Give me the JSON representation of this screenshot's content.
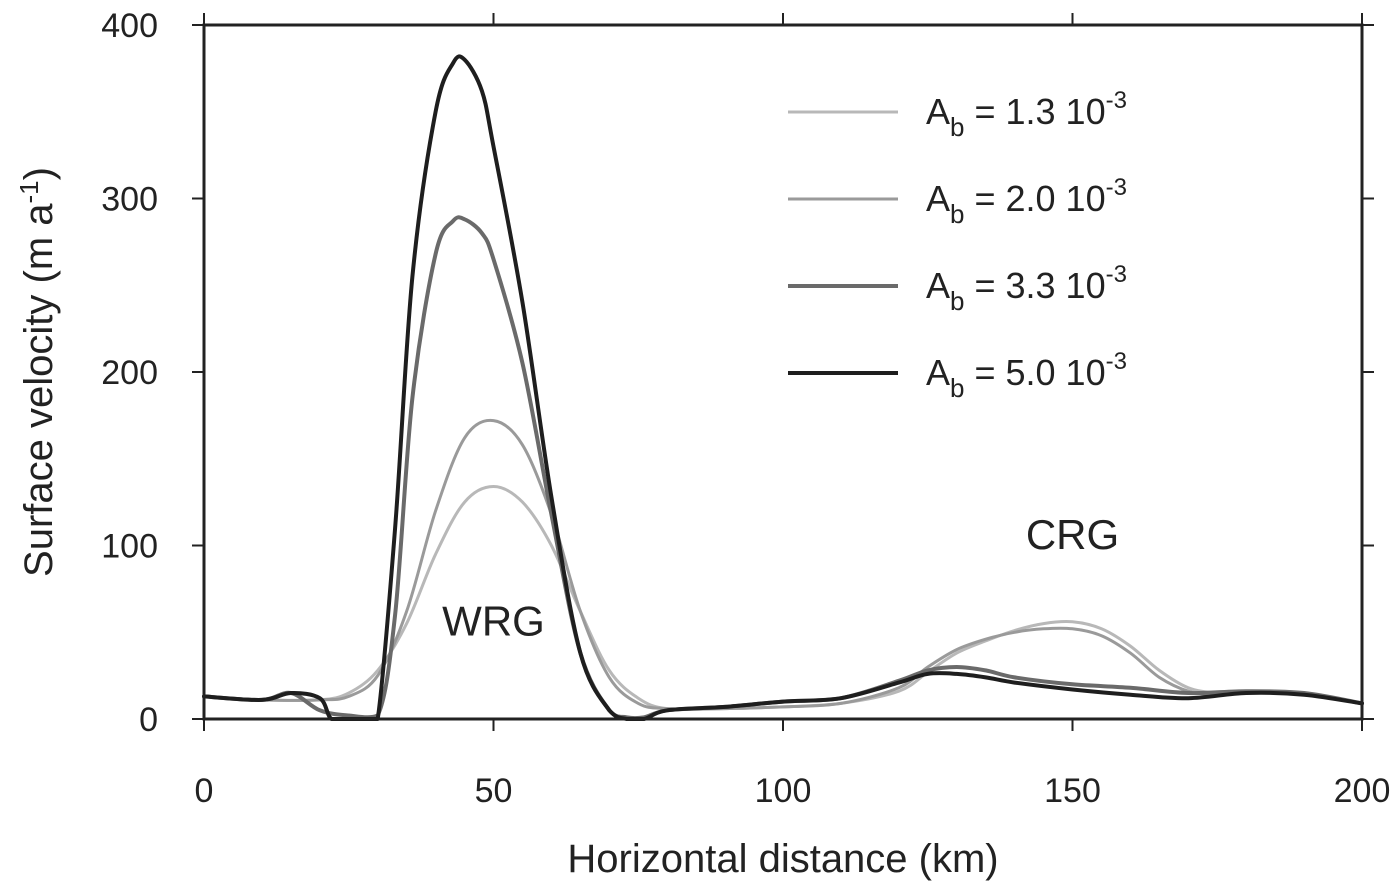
{
  "chart_data": {
    "type": "line",
    "xlabel": "Horizontal distance (km)",
    "ylabel_main": "Surface velocity (m a",
    "ylabel_sup": "-1",
    "ylabel_close": ")",
    "xlim": [
      0,
      200
    ],
    "ylim": [
      0,
      400
    ],
    "xticks": [
      0,
      50,
      100,
      150,
      200
    ],
    "yticks": [
      0,
      100,
      200,
      300,
      400
    ],
    "grid": false,
    "legend_position": "top-right",
    "annotations": [
      {
        "text": "WRG",
        "x": 50,
        "y": 48
      },
      {
        "text": "CRG",
        "x": 150,
        "y": 98
      }
    ],
    "series": [
      {
        "label_main": "A",
        "label_sub": "b",
        "label_rest": " = 1.3 10",
        "label_sup": "-3",
        "color": "#b8b8b8",
        "width": 3,
        "x": [
          0,
          10,
          20,
          25,
          30,
          35,
          40,
          45,
          50,
          55,
          60,
          65,
          70,
          75,
          80,
          90,
          100,
          110,
          120,
          125,
          130,
          135,
          140,
          145,
          150,
          155,
          160,
          165,
          170,
          175,
          180,
          190,
          200
        ],
        "y": [
          13,
          11,
          11,
          15,
          28,
          55,
          95,
          125,
          134,
          125,
          100,
          62,
          28,
          12,
          6,
          6,
          7,
          9,
          16,
          27,
          38,
          45,
          51,
          55,
          56,
          52,
          42,
          28,
          18,
          15,
          15,
          15,
          9
        ]
      },
      {
        "label_main": "A",
        "label_sub": "b",
        "label_rest": " = 2.0 10",
        "label_sup": "-3",
        "color": "#9a9a9a",
        "width": 3,
        "x": [
          0,
          10,
          20,
          25,
          30,
          35,
          40,
          45,
          50,
          55,
          60,
          65,
          70,
          75,
          80,
          90,
          100,
          110,
          120,
          125,
          130,
          135,
          140,
          145,
          150,
          155,
          160,
          165,
          170,
          175,
          180,
          190,
          200
        ],
        "y": [
          13,
          11,
          11,
          13,
          25,
          62,
          120,
          162,
          172,
          158,
          118,
          62,
          24,
          9,
          6,
          6,
          7,
          9,
          18,
          30,
          40,
          46,
          50,
          52,
          52,
          48,
          38,
          24,
          16,
          14,
          15,
          15,
          9
        ]
      },
      {
        "label_main": "A",
        "label_sub": "b",
        "label_rest": " = 3.3 10",
        "label_sup": "-3",
        "color": "#6a6a6a",
        "width": 4,
        "x": [
          0,
          10,
          15,
          20,
          25,
          30,
          33,
          36,
          40,
          43,
          45,
          48,
          50,
          55,
          60,
          65,
          70,
          73,
          76,
          80,
          90,
          100,
          110,
          120,
          125,
          130,
          135,
          140,
          150,
          160,
          170,
          180,
          190,
          200
        ],
        "y": [
          13,
          11,
          15,
          5,
          2,
          2,
          60,
          185,
          268,
          287,
          288,
          280,
          265,
          205,
          118,
          38,
          5,
          1,
          1,
          5,
          7,
          10,
          12,
          22,
          28,
          30,
          28,
          24,
          20,
          18,
          15,
          16,
          15,
          9
        ]
      },
      {
        "label_main": "A",
        "label_sub": "b",
        "label_rest": " = 5.0 10",
        "label_sup": "-3",
        "color": "#1e1e1e",
        "width": 4,
        "x": [
          0,
          10,
          15,
          20,
          22,
          25,
          28,
          30,
          33,
          36,
          40,
          43,
          45,
          48,
          50,
          55,
          60,
          65,
          70,
          73,
          76,
          80,
          90,
          100,
          110,
          120,
          125,
          130,
          135,
          140,
          150,
          160,
          170,
          180,
          190,
          200
        ],
        "y": [
          13,
          11,
          15,
          12,
          0,
          0,
          0,
          0,
          110,
          255,
          350,
          378,
          380,
          362,
          330,
          240,
          128,
          38,
          5,
          0,
          0,
          5,
          7,
          10,
          12,
          21,
          26,
          26,
          24,
          21,
          17,
          14,
          12,
          15,
          14,
          9
        ]
      }
    ]
  }
}
